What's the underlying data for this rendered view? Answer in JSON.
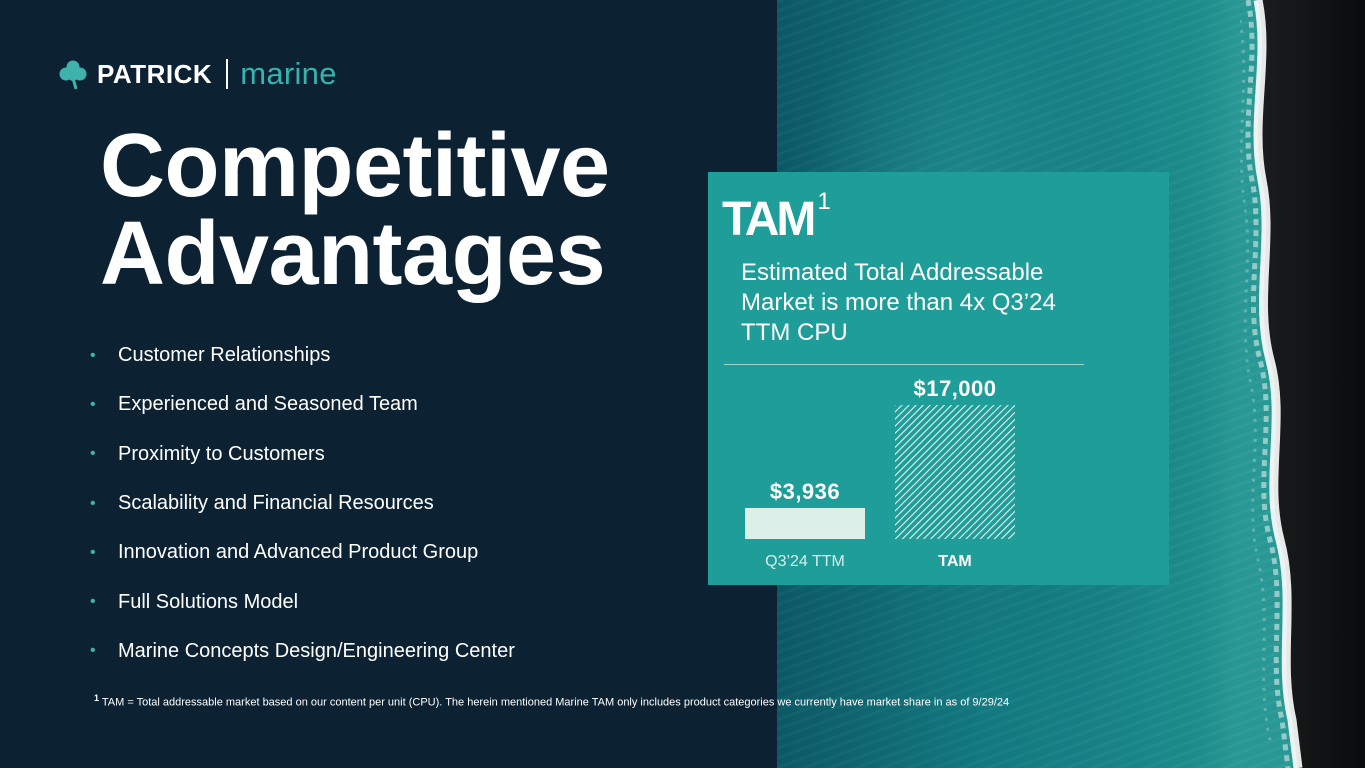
{
  "logo": {
    "brand": "PATRICK",
    "division": "marine"
  },
  "title": {
    "line1": "Competitive",
    "line2": "Advantages"
  },
  "bullets": [
    "Customer Relationships",
    "Experienced and Seasoned Team",
    "Proximity to Customers",
    "Scalability and Financial Resources",
    "Innovation and Advanced Product Group",
    "Full Solutions Model",
    "Marine Concepts Design/Engineering Center"
  ],
  "footnote": {
    "marker": "1",
    "text": "TAM = Total addressable market based on our content per unit (CPU). The herein mentioned Marine TAM only includes product categories we currently have market share in as of 9/29/24"
  },
  "panel": {
    "heading": "TAM",
    "heading_sup": "1",
    "description": "Estimated Total Addressable Market is more than 4x Q3’24 TTM CPU"
  },
  "colors": {
    "background": "#0c2233",
    "panel": "#1f9d99",
    "accent": "#37b3ad",
    "bar_solid": "#dcefe9"
  },
  "chart_data": {
    "type": "bar",
    "categories": [
      "Q3’24 TTM",
      "TAM"
    ],
    "values": [
      3936,
      17000
    ],
    "value_labels": [
      "$3,936",
      "$17,000"
    ],
    "ylim": [
      0,
      17000
    ],
    "title": "",
    "xlabel": "",
    "ylabel": ""
  }
}
